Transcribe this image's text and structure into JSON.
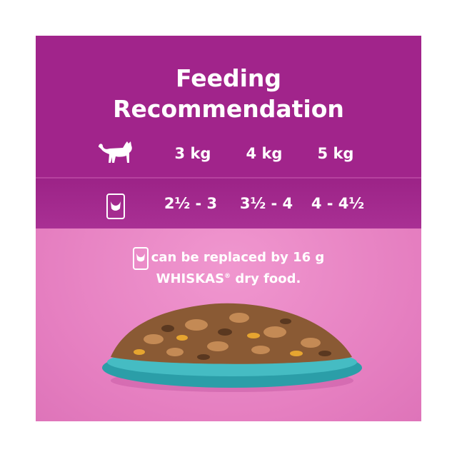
{
  "title_line1": "Feeding",
  "title_line2": "Recommendation",
  "weights": [
    "3 kg",
    "4 kg",
    "5 kg"
  ],
  "pouches": [
    "2½ - 3",
    "3½ - 4",
    "4 - 4½"
  ],
  "note_line1": "can be replaced by 16 g",
  "note_brand": "WHISKAS",
  "note_reg": "®",
  "note_line2_rest": " dry food.",
  "icons": {
    "weight_row": "cat-icon",
    "pouch_row": "pouch-icon"
  },
  "colors": {
    "purple": "#a1248b",
    "pink": "#e889c5",
    "bowl": "#2fa7b0"
  }
}
